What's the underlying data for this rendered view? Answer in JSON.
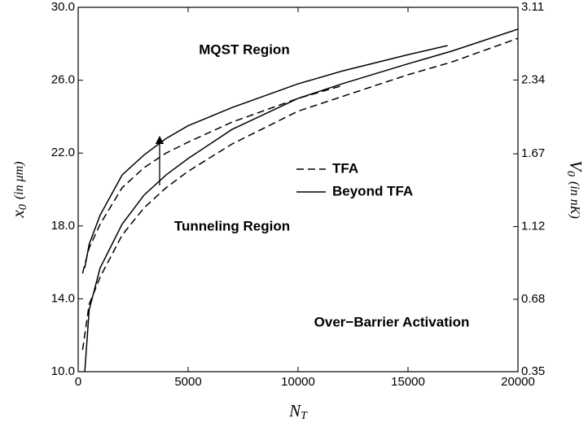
{
  "chart_data": {
    "type": "line",
    "xlabel": [
      "N",
      "T"
    ],
    "ylabel": [
      "x",
      "0",
      "(in μm)"
    ],
    "y2label": [
      "V",
      "0",
      "(in nK)"
    ],
    "xlim": [
      0,
      20000
    ],
    "xticks": [
      0,
      5000,
      10000,
      15000,
      20000
    ],
    "ylim": [
      10,
      30
    ],
    "yticks": [
      {
        "value": 10,
        "label": "10.0"
      },
      {
        "value": 14,
        "label": "14.0"
      },
      {
        "value": 18,
        "label": "18.0"
      },
      {
        "value": 22,
        "label": "22.0"
      },
      {
        "value": 26,
        "label": "26.0"
      },
      {
        "value": 30,
        "label": "30.0"
      }
    ],
    "y2lim": [
      0.35,
      3.11
    ],
    "y2scale": "sqrt",
    "y2ticks": [
      0.35,
      0.68,
      1.12,
      1.67,
      2.34,
      3.11
    ],
    "annotations": [
      "MQST Region",
      "Tunneling Region",
      "Over−Barrier Activation"
    ],
    "legend_position": "center-right",
    "series": [
      {
        "name": "TFA",
        "color": "#000",
        "dash": true,
        "x": [
          200,
          500,
          1000,
          2000,
          3000,
          4000,
          5000,
          7000,
          10000,
          12000
        ],
        "values": [
          15.4,
          16.8,
          18.1,
          20.1,
          21.2,
          22.0,
          22.6,
          23.7,
          25.0,
          25.7
        ]
      },
      {
        "name": "TFA",
        "color": "#000",
        "dash": true,
        "x": [
          200,
          500,
          1000,
          2000,
          3000,
          4000,
          5000,
          7000,
          10000,
          12000,
          15000,
          17000,
          20000
        ],
        "values": [
          11.2,
          13.7,
          15.2,
          17.5,
          19.0,
          20.1,
          21.0,
          22.5,
          24.3,
          25.1,
          26.3,
          27.0,
          28.3
        ]
      },
      {
        "name": "Beyond TFA",
        "color": "#000",
        "dash": false,
        "x": [
          300,
          500,
          1000,
          2000,
          3000,
          4000,
          5000,
          7000,
          10000,
          12000,
          15000,
          16800
        ],
        "values": [
          15.7,
          17.0,
          18.6,
          20.8,
          21.9,
          22.8,
          23.5,
          24.5,
          25.8,
          26.5,
          27.4,
          27.9
        ]
      },
      {
        "name": "Beyond TFA",
        "color": "#000",
        "dash": false,
        "x": [
          300,
          500,
          1000,
          2000,
          3000,
          4000,
          5000,
          7000,
          10000,
          12000,
          15000,
          17000,
          20000
        ],
        "values": [
          10.0,
          13.4,
          15.7,
          18.1,
          19.7,
          20.8,
          21.7,
          23.3,
          25.0,
          25.8,
          26.9,
          27.6,
          28.8
        ]
      }
    ]
  }
}
